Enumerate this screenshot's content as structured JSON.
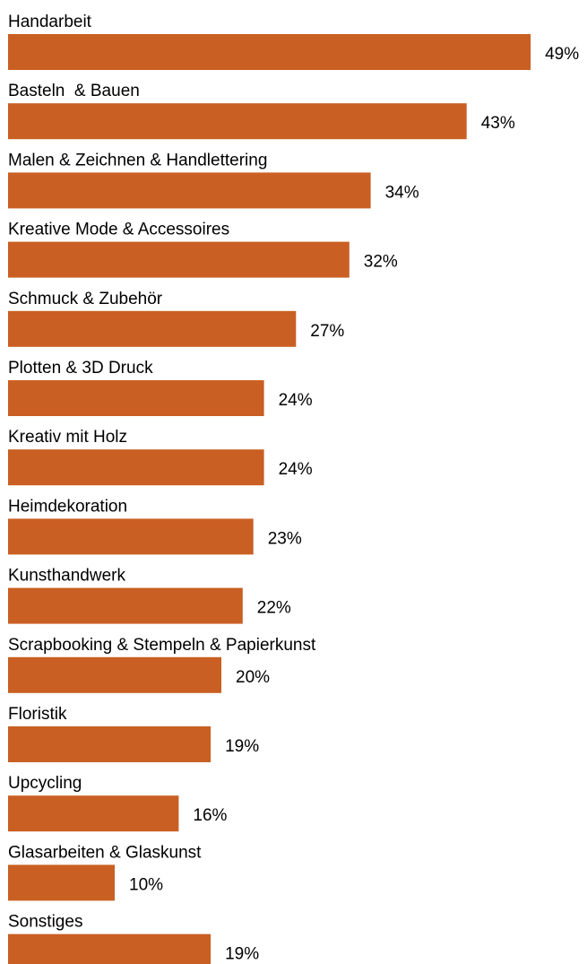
{
  "chart_data": {
    "type": "bar",
    "orientation": "horizontal",
    "categories": [
      "Handarbeit",
      "Basteln  & Bauen",
      "Malen & Zeichnen & Handlettering",
      "Kreative Mode & Accessoires",
      "Schmuck & Zubehör",
      "Plotten & 3D Druck",
      "Kreativ mit Holz",
      "Heimdekoration",
      "Kunsthandwerk",
      "Scrapbooking & Stempeln & Papierkunst",
      "Floristik",
      "Upcycling",
      "Glasarbeiten & Glaskunst",
      "Sonstiges"
    ],
    "values": [
      49,
      43,
      34,
      32,
      27,
      24,
      24,
      23,
      22,
      20,
      19,
      16,
      10,
      19
    ],
    "value_labels": [
      "49%",
      "43%",
      "34%",
      "32%",
      "27%",
      "24%",
      "24%",
      "23%",
      "22%",
      "20%",
      "19%",
      "16%",
      "10%",
      "19%"
    ],
    "unit": "%",
    "bar_color": "#C95F22",
    "grid": false,
    "legend": "none"
  }
}
